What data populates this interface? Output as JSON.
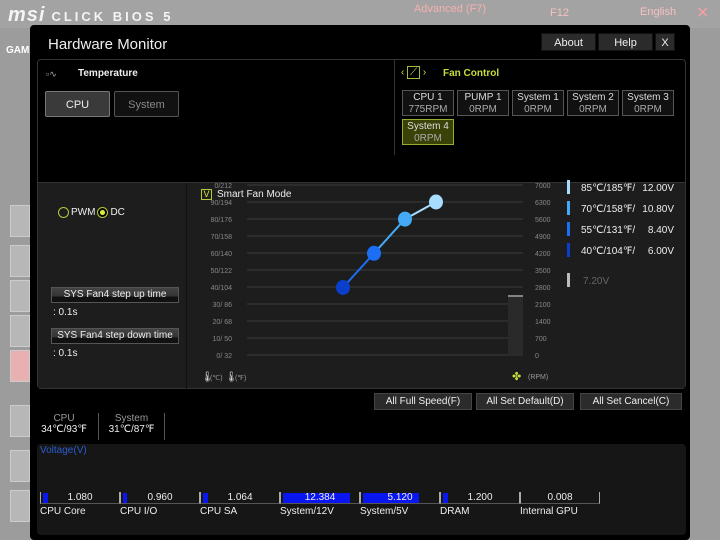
{
  "background": {
    "brand": "msi",
    "product": "CLICK BIOS 5",
    "mode": "Advanced (F7)",
    "screenshot_key": "F12",
    "language": "English",
    "side_label": "GAME"
  },
  "window": {
    "title": "Hardware Monitor",
    "about": "About",
    "help": "Help",
    "close": "X"
  },
  "temperature": {
    "label": "Temperature",
    "tabs": [
      "CPU",
      "System"
    ],
    "selected": "CPU"
  },
  "fan_control": {
    "label": "Fan Control",
    "fans": [
      {
        "name": "CPU 1",
        "rpm": "775RPM"
      },
      {
        "name": "PUMP 1",
        "rpm": "0RPM"
      },
      {
        "name": "System 1",
        "rpm": "0RPM"
      },
      {
        "name": "System 2",
        "rpm": "0RPM"
      },
      {
        "name": "System 3",
        "rpm": "0RPM"
      },
      {
        "name": "System 4",
        "rpm": "0RPM"
      }
    ],
    "selected": "System 4"
  },
  "mode": {
    "pwm": "PWM",
    "dc": "DC",
    "selected": "DC"
  },
  "step": {
    "up_label": "SYS Fan4 step up time",
    "up_value": ": 0.1s",
    "down_label": "SYS Fan4 step down time",
    "down_value": ": 0.1s"
  },
  "smart_fan": {
    "label": "Smart Fan Mode",
    "checked": true
  },
  "chart_data": {
    "type": "line",
    "left_ticks": [
      "0/ 32",
      "10/ 50",
      "20/ 68",
      "30/ 86",
      "40/104",
      "50/122",
      "60/140",
      "70/158",
      "80/176",
      "90/194",
      "0/212"
    ],
    "right_ticks": [
      "0",
      "700",
      "1400",
      "2100",
      "2800",
      "3500",
      "4200",
      "4900",
      "5600",
      "6300",
      "7000"
    ],
    "celsius_label": "(℃)",
    "fahrenheit_label": "(℉)",
    "rpm_label": "(RPM)",
    "points": [
      {
        "temp_c": 40,
        "volt": 6.0
      },
      {
        "temp_c": 55,
        "volt": 8.4
      },
      {
        "temp_c": 70,
        "volt": 10.8
      },
      {
        "temp_c": 85,
        "volt": 12.0
      }
    ],
    "legend": [
      {
        "temp": "85℃/185℉/",
        "volt": "12.00V",
        "color": "#a8dcff"
      },
      {
        "temp": "70℃/158℉/",
        "volt": "10.80V",
        "color": "#45aaf5"
      },
      {
        "temp": "55℃/131℉/",
        "volt": "8.40V",
        "color": "#1c6ef5"
      },
      {
        "temp": "40℃/104℉/",
        "volt": "6.00V",
        "color": "#0a3fcc"
      }
    ],
    "current": "7.20V"
  },
  "actions": {
    "full": "All Full Speed(F)",
    "default": "All Set Default(D)",
    "cancel": "All Set Cancel(C)"
  },
  "readouts": [
    {
      "label": "CPU",
      "value": "34℃/93℉"
    },
    {
      "label": "System",
      "value": "31℃/87℉"
    }
  ],
  "voltage": {
    "title": "Voltage(V)",
    "items": [
      {
        "label": "CPU Core",
        "value": "1.080",
        "fill": 0.06
      },
      {
        "label": "CPU I/O",
        "value": "0.960",
        "fill": 0.05
      },
      {
        "label": "CPU SA",
        "value": "1.064",
        "fill": 0.06
      },
      {
        "label": "System/12V",
        "value": "12.384",
        "fill": 0.88
      },
      {
        "label": "System/5V",
        "value": "5.120",
        "fill": 0.74
      },
      {
        "label": "DRAM",
        "value": "1.200",
        "fill": 0.07
      },
      {
        "label": "Internal GPU",
        "value": "0.008",
        "fill": 0
      }
    ]
  }
}
